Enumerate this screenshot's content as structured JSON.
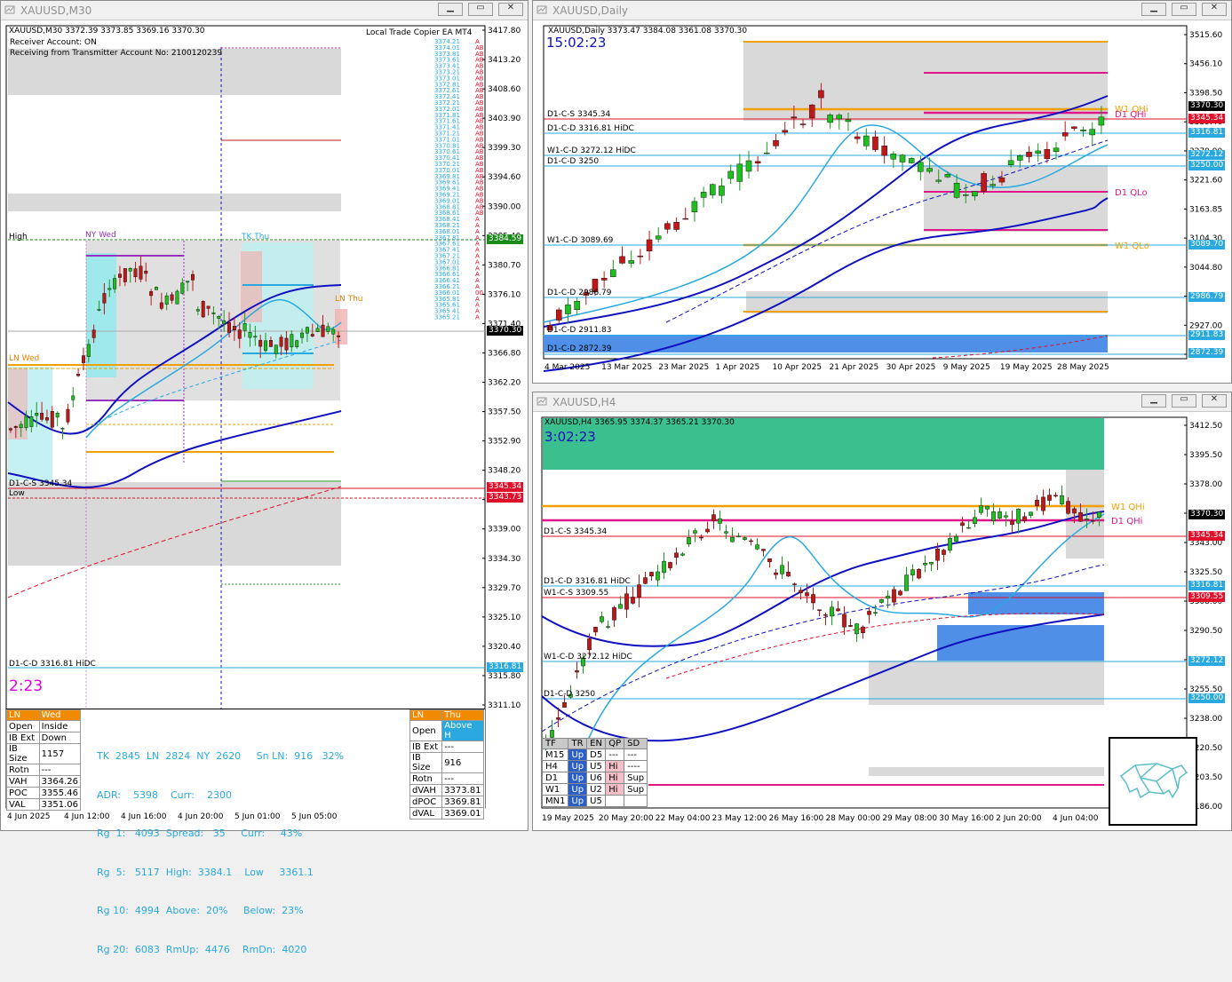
{
  "windows": {
    "m30": {
      "title": "XAUUSD,M30",
      "header": "XAUUSD,M30  3372.39 3373.85 3369.16 3370.30",
      "ea_name": "Local Trade Copier EA MT4",
      "receiver_line": "Receiver Account: ON",
      "receiving_line": "Receiving from Transmitter Account No: 2100120239",
      "timer": "2:23",
      "price_axis": [
        "3417.80",
        "3413.20",
        "3408.60",
        "3403.90",
        "3399.30",
        "3394.60",
        "3390.00",
        "3385.40",
        "3380.70",
        "3376.10",
        "3371.40",
        "3366.80",
        "3362.20",
        "3357.50",
        "3352.90",
        "3348.20",
        "3343.60",
        "3339.00",
        "3334.30",
        "3329.70",
        "3325.10",
        "3320.40",
        "3315.80",
        "3311.10"
      ],
      "price_tags": [
        {
          "text": "3384.59",
          "color": "#1a8a1a"
        },
        {
          "text": "3370.30",
          "color": "#000000"
        },
        {
          "text": "3345.34",
          "color": "#e0102a"
        },
        {
          "text": "3343.73",
          "color": "#e0102a"
        },
        {
          "text": "3316.81",
          "color": "#29a9e0"
        }
      ],
      "time_axis": [
        "4 Jun 2025",
        "4 Jun 12:00",
        "4 Jun 16:00",
        "4 Jun 20:00",
        "5 Jun 01:00",
        "5 Jun 05:00"
      ],
      "labels": {
        "high": "High",
        "low": "Low",
        "ny_wed": "NY Wed",
        "tk_thu": "TK Thu",
        "ln_thu": "LN Thu",
        "ln_wed": "LN Wed",
        "d1_cs": "D1-C-S 3345.34",
        "d1_cd": "D1-C-D 3316.81 HiDC"
      },
      "order_ladder": [
        "3374.21",
        "3374.01",
        "3373.81",
        "3373.61",
        "3373.41",
        "3373.21",
        "3373.01",
        "3372.81",
        "3372.61",
        "3372.41",
        "3372.21",
        "3372.01",
        "3371.81",
        "3371.61",
        "3371.41",
        "3371.21",
        "3371.01",
        "3370.81",
        "3370.61",
        "3370.41",
        "3370.21",
        "3370.01",
        "3369.81",
        "3369.61",
        "3369.41",
        "3369.21",
        "3369.01",
        "3368.81",
        "3368.61",
        "3368.41",
        "3368.21",
        "3368.01",
        "3367.81",
        "3367.61",
        "3367.41",
        "3367.21",
        "3367.01",
        "3366.81",
        "3366.61",
        "3366.41",
        "3366.21",
        "3366.01",
        "3365.81",
        "3365.61",
        "3365.41",
        "3365.21"
      ],
      "ladder_flags": [
        "A",
        "AB",
        "AB",
        "AB",
        "AB",
        "AB",
        "AB",
        "AB",
        "AB",
        "AB",
        "AB",
        "AB",
        "AB",
        "AB",
        "AB",
        "AB",
        "AB",
        "AB",
        "AB",
        "AB",
        "AB",
        "AB",
        "AB",
        "AB",
        "AB",
        "AB",
        "AB",
        "AB",
        "AB",
        "A",
        "A",
        "A",
        "A",
        "A",
        "A",
        "A",
        "A",
        "A",
        "A",
        "A",
        "A",
        "00",
        "A",
        "A",
        "A",
        "A"
      ],
      "panel_left": {
        "session": "LN",
        "day": "Wed",
        "rows": [
          [
            "Open",
            "Inside"
          ],
          [
            "IB Ext",
            "Down"
          ],
          [
            "IB Size",
            "1157"
          ],
          [
            "Rotn",
            "---"
          ],
          [
            "VAH",
            "3364.26"
          ],
          [
            "POC",
            "3355.46"
          ],
          [
            "VAL",
            "3351.06"
          ]
        ]
      },
      "panel_right": {
        "session": "LN",
        "day": "Thu",
        "rows": [
          [
            "Open",
            "Above H"
          ],
          [
            "IB Ext",
            "---"
          ],
          [
            "IB Size",
            "916"
          ],
          [
            "Rotn",
            "---"
          ],
          [
            "dVAH",
            "3373.81"
          ],
          [
            "dPOC",
            "3369.81"
          ],
          [
            "dVAL",
            "3369.01"
          ]
        ]
      },
      "stats": {
        "line1": "TK  2845  LN  2824  NY  2620     Sn LN:  916   32%",
        "line2": "ADR:    5398    Curr:    2300",
        "line3": "Rg  1:   4093  Spread:   35     Curr:     43%",
        "line4": "Rg  5:   5117  High:  3384.1    Low     3361.1",
        "line5": "Rg 10:  4994  Above:  20%     Below:  23%",
        "line6": "Rg 20:  6083  RmUp:  4476    RmDn:  4020"
      }
    },
    "daily": {
      "title": "XAUUSD,Daily",
      "header": "XAUUSD,Daily  3373.47 3384.08 3361.08 3370.30",
      "timer": "15:02:23",
      "price_axis": [
        "3515.60",
        "3456.10",
        "3398.50",
        "3339.40",
        "3279.90",
        "3221.60",
        "3163.85",
        "3104.30",
        "3044.80",
        "2986.70",
        "2927.00",
        "2870.50"
      ],
      "price_tags": [
        {
          "text": "3370.30",
          "color": "#000000"
        },
        {
          "text": "3345.34",
          "color": "#e0102a"
        },
        {
          "text": "3316.81",
          "color": "#29a9e0"
        },
        {
          "text": "3272.12",
          "color": "#29a9e0"
        },
        {
          "text": "3250.00",
          "color": "#29a9e0"
        },
        {
          "text": "3089.70",
          "color": "#29a9e0"
        },
        {
          "text": "2986.79",
          "color": "#29a9e0"
        },
        {
          "text": "2911.83",
          "color": "#29a9e0"
        },
        {
          "text": "2872.39",
          "color": "#29a9e0"
        }
      ],
      "time_axis": [
        "4 Mar 2025",
        "13 Mar 2025",
        "23 Mar 2025",
        "1 Apr 2025",
        "10 Apr 2025",
        "21 Apr 2025",
        "30 Apr 2025",
        "9 May 2025",
        "19 May 2025",
        "28 May 2025"
      ],
      "labels": {
        "d1_cs": "D1-C-S 3345.34",
        "d1_cd_hidc": "D1-C-D 3316.81 HiDC",
        "w1_cd_hidc": "W1-C-D 3272.12 HiDC",
        "d1_cd_3250": "D1-C-D 3250",
        "w1_cd": "W1-C-D 3089.69",
        "d1_cd_2986": "D1-C-D 2986.79",
        "d1_cd_2911": "D1-C-D 2911.83",
        "d1_cd_2872": "D1-C-D 2872.39",
        "w1_qhi": "W1 QHi",
        "d1_qhi": "D1 QHi",
        "d1_qlo": "D1 QLo",
        "w1_qlo": "W1 QLo"
      }
    },
    "h4": {
      "title": "XAUUSD,H4",
      "header": "XAUUSD,H4  3365.95 3374.37 3365.21 3370.30",
      "timer": "3:02:23",
      "price_axis": [
        "3412.50",
        "3395.50",
        "3378.00",
        "3360.50",
        "3343.00",
        "3325.50",
        "3308.00",
        "3290.50",
        "3273.00",
        "3255.50",
        "3238.00",
        "3220.50",
        "3203.50",
        "3186.00"
      ],
      "price_tags": [
        {
          "text": "3370.30",
          "color": "#000000"
        },
        {
          "text": "3345.34",
          "color": "#e0102a"
        },
        {
          "text": "3316.81",
          "color": "#29a9e0"
        },
        {
          "text": "3309.55",
          "color": "#e0102a"
        },
        {
          "text": "3272.12",
          "color": "#29a9e0"
        },
        {
          "text": "3250.00",
          "color": "#29a9e0"
        }
      ],
      "time_axis": [
        "19 May 2025",
        "20 May 20:00",
        "22 May 04:00",
        "23 May 12:00",
        "26 May 16:00",
        "28 May 00:00",
        "29 May 08:00",
        "30 May 16:00",
        "2 Jun 20:00",
        "4 Jun 04:00"
      ],
      "labels": {
        "d1_cs": "D1-C-S 3345.34",
        "d1_cd_hidc": "D1-C-D 3316.81 HiDC",
        "w1_cs": "W1-C-S 3309.55",
        "w1_cd_hidc": "W1-C-D 3272.12 HiDC",
        "d1_cd_3250": "D1-C-D 3250",
        "w1_qhi": "W1 QHi",
        "d1_qhi": "D1 QHi"
      },
      "trend_table": {
        "header": [
          "TF",
          "TR",
          "EN",
          "QP",
          "SD"
        ],
        "rows": [
          [
            "M15",
            "Up",
            "D5",
            "---",
            "---"
          ],
          [
            "H4",
            "Up",
            "U5",
            "Hi",
            "----"
          ],
          [
            "D1",
            "Up",
            "U6",
            "Hi",
            "Sup"
          ],
          [
            "W1",
            "Up",
            "U2",
            "Hi",
            "Sup"
          ],
          [
            "MN1",
            "Up",
            "U5",
            "",
            ""
          ]
        ]
      }
    }
  },
  "colors": {
    "bg": "#ffffff",
    "bull": "#1a9a1a",
    "bear": "#c01818",
    "ma_fast": "#29a9e0",
    "ma_slow": "#1010c0",
    "orange": "#f0a000",
    "magenta": "#e0168a",
    "red": "#e0102a",
    "cyan": "#29a9e0",
    "green_zone": "#3cbf8f",
    "blue_zone": "#3c7fe6",
    "gray_zone": "#d9d9d9"
  }
}
